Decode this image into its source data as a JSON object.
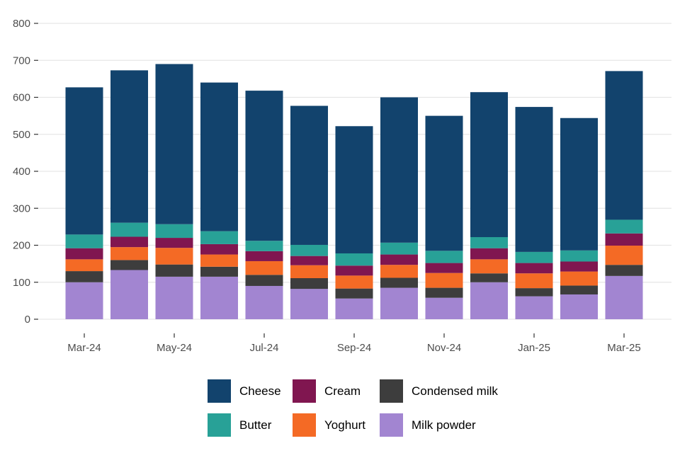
{
  "chart_data": {
    "type": "bar",
    "stacked": true,
    "categories": [
      "Mar-24",
      "Apr-24",
      "May-24",
      "Jun-24",
      "Jul-24",
      "Aug-24",
      "Sep-24",
      "Oct-24",
      "Nov-24",
      "Dec-24",
      "Jan-25",
      "Feb-25",
      "Mar-25"
    ],
    "x_tick_labels": [
      "Mar-24",
      "May-24",
      "Jul-24",
      "Sep-24",
      "Nov-24",
      "Jan-25",
      "Mar-25"
    ],
    "ylim": [
      0,
      800
    ],
    "y_ticks": [
      0,
      100,
      200,
      300,
      400,
      500,
      600,
      700,
      800
    ],
    "grid": true,
    "legend_position": "bottom",
    "series": [
      {
        "name": "Milk powder",
        "color": "#a285d1",
        "values": [
          100,
          133,
          115,
          115,
          90,
          82,
          56,
          85,
          58,
          100,
          62,
          67,
          117
        ]
      },
      {
        "name": "Condensed milk",
        "color": "#3d3d3d",
        "values": [
          30,
          27,
          33,
          27,
          30,
          29,
          27,
          27,
          27,
          24,
          22,
          24,
          30
        ]
      },
      {
        "name": "Yoghurt",
        "color": "#f46a25",
        "values": [
          32,
          35,
          45,
          33,
          37,
          35,
          35,
          35,
          40,
          38,
          40,
          38,
          52
        ]
      },
      {
        "name": "Cream",
        "color": "#801650",
        "values": [
          30,
          28,
          27,
          28,
          27,
          25,
          27,
          28,
          27,
          30,
          28,
          27,
          33
        ]
      },
      {
        "name": "Butter",
        "color": "#28a197",
        "values": [
          37,
          38,
          37,
          35,
          28,
          30,
          33,
          32,
          33,
          30,
          30,
          30,
          37
        ]
      },
      {
        "name": "Cheese",
        "color": "#12436d",
        "values": [
          398,
          412,
          433,
          402,
          406,
          376,
          344,
          393,
          365,
          392,
          392,
          358,
          402
        ]
      }
    ],
    "legend": [
      {
        "name": "Cheese",
        "color": "#12436d"
      },
      {
        "name": "Cream",
        "color": "#801650"
      },
      {
        "name": "Condensed milk",
        "color": "#3d3d3d"
      },
      {
        "name": "Butter",
        "color": "#28a197"
      },
      {
        "name": "Yoghurt",
        "color": "#f46a25"
      },
      {
        "name": "Milk powder",
        "color": "#a285d1"
      }
    ]
  }
}
